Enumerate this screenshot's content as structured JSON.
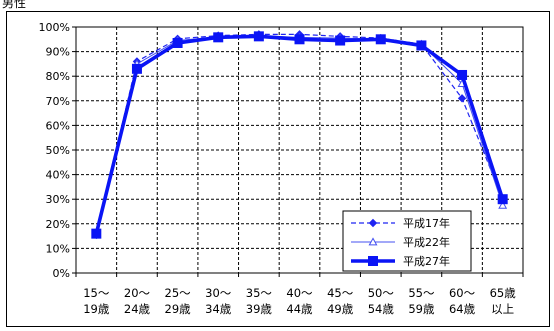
{
  "corner_label": "男性",
  "chart_data": {
    "type": "line",
    "categories": [
      [
        "15～",
        "19歳"
      ],
      [
        "20～",
        "24歳"
      ],
      [
        "25～",
        "29歳"
      ],
      [
        "30～",
        "34歳"
      ],
      [
        "35～",
        "39歳"
      ],
      [
        "40～",
        "44歳"
      ],
      [
        "45～",
        "49歳"
      ],
      [
        "50～",
        "54歳"
      ],
      [
        "55～",
        "59歳"
      ],
      [
        "60～",
        "64歳"
      ],
      [
        "65歳",
        "以上"
      ]
    ],
    "ylim": [
      0,
      100
    ],
    "y_ticks": [
      "0%",
      "10%",
      "20%",
      "30%",
      "40%",
      "50%",
      "60%",
      "70%",
      "80%",
      "90%",
      "100%"
    ],
    "grid": true,
    "legend_position": "bottom-right",
    "series": [
      {
        "name": "平成17年",
        "style": "dashed",
        "marker": "diamond",
        "color": "#1f24f2",
        "values": [
          15.5,
          86.0,
          95.2,
          96.5,
          97.0,
          97.0,
          96.2,
          95.5,
          93.0,
          71.0,
          30.0
        ]
      },
      {
        "name": "平成22年",
        "style": "thin",
        "marker": "triangle",
        "color": "#4450f0",
        "values": [
          15.5,
          85.0,
          94.5,
          96.0,
          96.5,
          95.8,
          95.5,
          95.0,
          93.0,
          77.0,
          27.5
        ]
      },
      {
        "name": "平成27年",
        "style": "thick",
        "marker": "square",
        "color": "#0a14f5",
        "values": [
          16.0,
          83.0,
          93.5,
          95.8,
          96.2,
          95.0,
          94.5,
          95.0,
          92.5,
          80.5,
          30.0
        ]
      }
    ]
  }
}
